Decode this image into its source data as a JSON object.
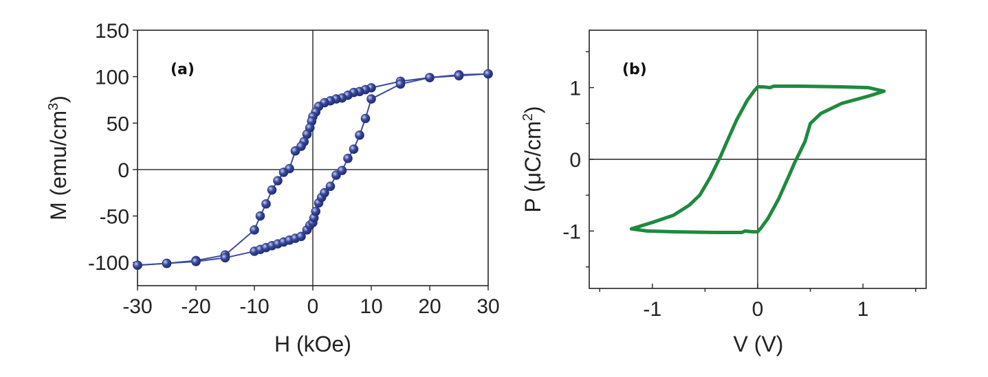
{
  "chart_data": [
    {
      "panel_label": "(a)",
      "type": "scatter",
      "xlabel": "H (kOe)",
      "ylabel_main": "M (emu/cm",
      "ylabel_sup": "3",
      "ylabel_tail": ")",
      "xlim": [
        -30,
        30
      ],
      "ylim": [
        -125,
        150
      ],
      "xticks": [
        -30,
        -20,
        -10,
        0,
        10,
        20,
        30
      ],
      "yticks": [
        -100,
        -50,
        0,
        50,
        100,
        150
      ],
      "zero_lines": true,
      "grid": false,
      "marker_color": "#3a4a9e",
      "series": [
        {
          "x": [
            30,
            25,
            20,
            15,
            10,
            9,
            8,
            7,
            6,
            5,
            4,
            3,
            2,
            1,
            0.5,
            0,
            -0.2,
            -0.5,
            -1,
            -1.5,
            -2,
            -3,
            -4,
            -5,
            -6,
            -7,
            -8,
            -9,
            -10,
            -15,
            -20,
            -25,
            -30
          ],
          "y": [
            103,
            102,
            99,
            95,
            88,
            86,
            84,
            83,
            80,
            77,
            76,
            74,
            72,
            68,
            62,
            57,
            52,
            45,
            38,
            30,
            25,
            20,
            1,
            -3,
            -12,
            -22,
            -37,
            -50,
            -65,
            -92,
            -98,
            -101,
            -103
          ]
        },
        {
          "x": [
            -30,
            -25,
            -20,
            -15,
            -10,
            -9,
            -8,
            -7,
            -6,
            -5,
            -4,
            -3,
            -2,
            -1,
            -0.5,
            0,
            0.2,
            0.5,
            1,
            1.5,
            2,
            3,
            4,
            5,
            6,
            7,
            8,
            9,
            10,
            15,
            20,
            25,
            30
          ],
          "y": [
            -103,
            -101,
            -99,
            -95,
            -88,
            -86,
            -84,
            -82,
            -80,
            -78,
            -76,
            -74,
            -72,
            -65,
            -60,
            -57,
            -52,
            -45,
            -36,
            -30,
            -25,
            -18,
            -6,
            -1,
            12,
            22,
            37,
            55,
            76,
            92,
            99,
            101,
            103
          ]
        }
      ]
    },
    {
      "panel_label": "(b)",
      "type": "line",
      "xlabel": "V (V)",
      "ylabel_main": "P (μC/cm",
      "ylabel_sup": "2",
      "ylabel_tail": ")",
      "xlim": [
        -1.6,
        1.6
      ],
      "ylim": [
        -1.8,
        1.8
      ],
      "xticks": [
        -1,
        0,
        1
      ],
      "yticks": [
        -1,
        0,
        1
      ],
      "minor_xticks": [
        -1.5,
        -0.5,
        0.5,
        1.5
      ],
      "minor_yticks": [
        -1.5,
        -0.5,
        0.5,
        1.5
      ],
      "zero_lines": true,
      "grid": false,
      "line_color": "#1e8a3e",
      "series": [
        {
          "x": [
            -1.2,
            -1.0,
            -0.8,
            -0.65,
            -0.55,
            -0.45,
            -0.4,
            -0.35,
            -0.3,
            -0.2,
            -0.1,
            -0.03,
            0,
            0.05,
            0.12,
            0.15,
            0.4,
            0.8,
            1.05,
            1.2,
            1.05,
            0.8,
            0.6,
            0.5,
            0.45,
            0.4,
            0.35,
            0.3,
            0.2,
            0.1,
            0.03,
            0,
            -0.05,
            -0.12,
            -0.15,
            -0.4,
            -0.8,
            -1.05,
            -1.2
          ],
          "y": [
            -0.97,
            -0.88,
            -0.78,
            -0.64,
            -0.5,
            -0.25,
            -0.1,
            0.05,
            0.22,
            0.55,
            0.82,
            0.96,
            1.01,
            1.01,
            1.0,
            1.02,
            1.02,
            1.01,
            1.0,
            0.95,
            0.88,
            0.78,
            0.64,
            0.5,
            0.25,
            0.1,
            -0.05,
            -0.22,
            -0.55,
            -0.82,
            -0.96,
            -1.01,
            -1.01,
            -1.0,
            -1.02,
            -1.02,
            -1.01,
            -1.0,
            -0.97
          ]
        }
      ]
    }
  ]
}
